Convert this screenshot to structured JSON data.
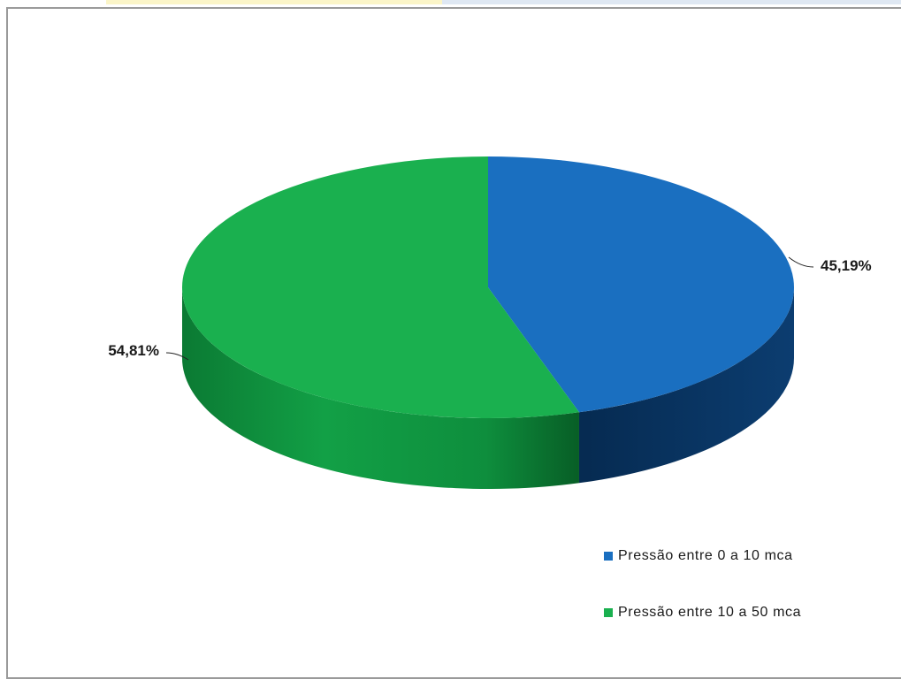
{
  "chart_data": {
    "type": "pie",
    "style": "3d",
    "categories": [
      "Pressão entre 0 a 10 mca",
      "Pressão entre 10 a 50 mca"
    ],
    "values": [
      45.19,
      54.81
    ],
    "data_labels": [
      "45,19%",
      "54,81%"
    ],
    "colors": [
      "#1a6fc0",
      "#1ab04f"
    ],
    "legend_position": "bottom-right"
  }
}
